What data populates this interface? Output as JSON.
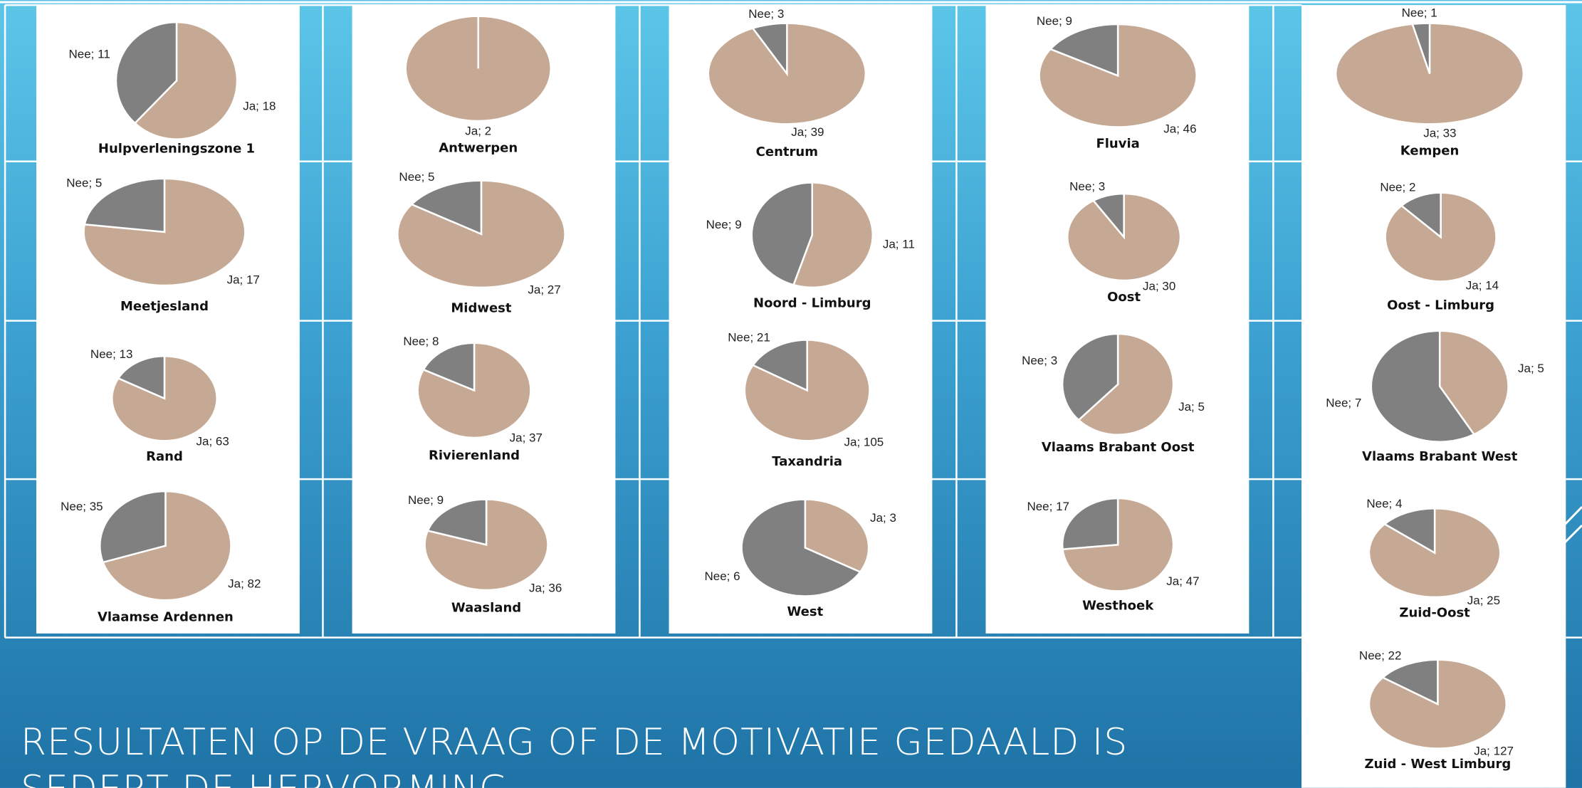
{
  "slide_title": "RESULTATEN OP DE VRAAG OF DE MOTIVATIE GEDAALD IS SEDERT DE HERVORMING",
  "chart_data": [
    {
      "type": "pie",
      "title": "Hulpverleningszone 1",
      "values": [
        18,
        11
      ],
      "value_labels": [
        "Ja; 18",
        "Nee; 11"
      ],
      "colors": [
        "#c6a994",
        "#808080"
      ]
    },
    {
      "type": "pie",
      "title": "Antwerpen",
      "values": [
        2
      ],
      "value_labels": [
        "Ja; 2"
      ],
      "colors": [
        "#c6a994"
      ]
    },
    {
      "type": "pie",
      "title": "Centrum",
      "values": [
        39,
        3
      ],
      "value_labels": [
        "Ja; 39",
        "Nee; 3"
      ],
      "colors": [
        "#c6a994",
        "#808080"
      ]
    },
    {
      "type": "pie",
      "title": "Fluvia",
      "values": [
        46,
        9
      ],
      "value_labels": [
        "Ja; 46",
        "Nee; 9"
      ],
      "colors": [
        "#c6a994",
        "#808080"
      ]
    },
    {
      "type": "pie",
      "title": "Kempen",
      "values": [
        33,
        1
      ],
      "value_labels": [
        "Ja; 33",
        "Nee; 1"
      ],
      "colors": [
        "#c6a994",
        "#808080"
      ]
    },
    {
      "type": "pie",
      "title": "Meetjesland",
      "values": [
        17,
        5
      ],
      "value_labels": [
        "Ja; 17",
        "Nee; 5"
      ],
      "colors": [
        "#c6a994",
        "#808080"
      ]
    },
    {
      "type": "pie",
      "title": "Midwest",
      "values": [
        27,
        5
      ],
      "value_labels": [
        "Ja; 27",
        "Nee; 5"
      ],
      "colors": [
        "#c6a994",
        "#808080"
      ]
    },
    {
      "type": "pie",
      "title": "Noord - Limburg",
      "values": [
        11,
        9
      ],
      "value_labels": [
        "Ja; 11",
        "Nee; 9"
      ],
      "colors": [
        "#c6a994",
        "#808080"
      ]
    },
    {
      "type": "pie",
      "title": "Oost",
      "values": [
        30,
        3
      ],
      "value_labels": [
        "Ja; 30",
        "Nee; 3"
      ],
      "colors": [
        "#c6a994",
        "#808080"
      ]
    },
    {
      "type": "pie",
      "title": "Oost - Limburg",
      "values": [
        14,
        2
      ],
      "value_labels": [
        "Ja; 14",
        "Nee; 2"
      ],
      "colors": [
        "#c6a994",
        "#808080"
      ]
    },
    {
      "type": "pie",
      "title": "Rand",
      "values": [
        63,
        13
      ],
      "value_labels": [
        "Ja; 63",
        "Nee; 13"
      ],
      "colors": [
        "#c6a994",
        "#808080"
      ]
    },
    {
      "type": "pie",
      "title": "Rivierenland",
      "values": [
        37,
        8
      ],
      "value_labels": [
        "Ja; 37",
        "Nee; 8"
      ],
      "colors": [
        "#c6a994",
        "#808080"
      ]
    },
    {
      "type": "pie",
      "title": "Taxandria",
      "values": [
        105,
        21
      ],
      "value_labels": [
        "Ja; 105",
        "Nee; 21"
      ],
      "colors": [
        "#c6a994",
        "#808080"
      ]
    },
    {
      "type": "pie",
      "title": "Vlaams Brabant Oost",
      "values": [
        5,
        3
      ],
      "value_labels": [
        "Ja; 5",
        "Nee; 3"
      ],
      "colors": [
        "#c6a994",
        "#808080"
      ]
    },
    {
      "type": "pie",
      "title": "Vlaams Brabant West",
      "values": [
        5,
        7
      ],
      "value_labels": [
        "Ja; 5",
        "Nee; 7"
      ],
      "colors": [
        "#c6a994",
        "#808080"
      ]
    },
    {
      "type": "pie",
      "title": "Vlaamse Ardennen",
      "values": [
        82,
        35
      ],
      "value_labels": [
        "Ja; 82",
        "Nee; 35"
      ],
      "colors": [
        "#c6a994",
        "#808080"
      ]
    },
    {
      "type": "pie",
      "title": "Waasland",
      "values": [
        36,
        9
      ],
      "value_labels": [
        "Ja; 36",
        "Nee; 9"
      ],
      "colors": [
        "#c6a994",
        "#808080"
      ]
    },
    {
      "type": "pie",
      "title": "West",
      "values": [
        3,
        6
      ],
      "value_labels": [
        "Ja; 3",
        "Nee; 6"
      ],
      "colors": [
        "#c6a994",
        "#808080"
      ]
    },
    {
      "type": "pie",
      "title": "Westhoek",
      "values": [
        47,
        17
      ],
      "value_labels": [
        "Ja; 47",
        "Nee; 17"
      ],
      "colors": [
        "#c6a994",
        "#808080"
      ]
    },
    {
      "type": "pie",
      "title": "Zuid-Oost",
      "values": [
        25,
        4
      ],
      "value_labels": [
        "Ja; 25",
        "Nee; 4"
      ],
      "colors": [
        "#c6a994",
        "#808080"
      ]
    },
    {
      "type": "pie",
      "title": "Zuid - West Limburg",
      "values": [
        127,
        22
      ],
      "value_labels": [
        "Ja; 127",
        "Nee; 22"
      ],
      "colors": [
        "#c6a994",
        "#808080"
      ]
    }
  ]
}
